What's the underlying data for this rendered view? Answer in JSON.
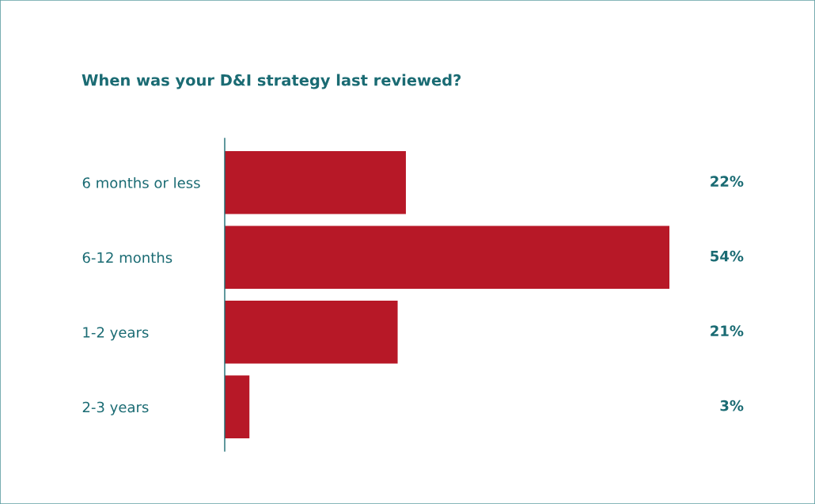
{
  "chart_data": {
    "type": "bar",
    "orientation": "horizontal",
    "title": "When was your D&I strategy last reviewed?",
    "categories": [
      "6 months or less",
      "6-12 months",
      "1-2 years",
      "2-3 years"
    ],
    "values": [
      22,
      54,
      21,
      3
    ],
    "value_labels": [
      "22%",
      "54%",
      "21%",
      "3%"
    ],
    "color": "#b71827",
    "grid": false,
    "legend": false,
    "tick_labels": "y"
  }
}
